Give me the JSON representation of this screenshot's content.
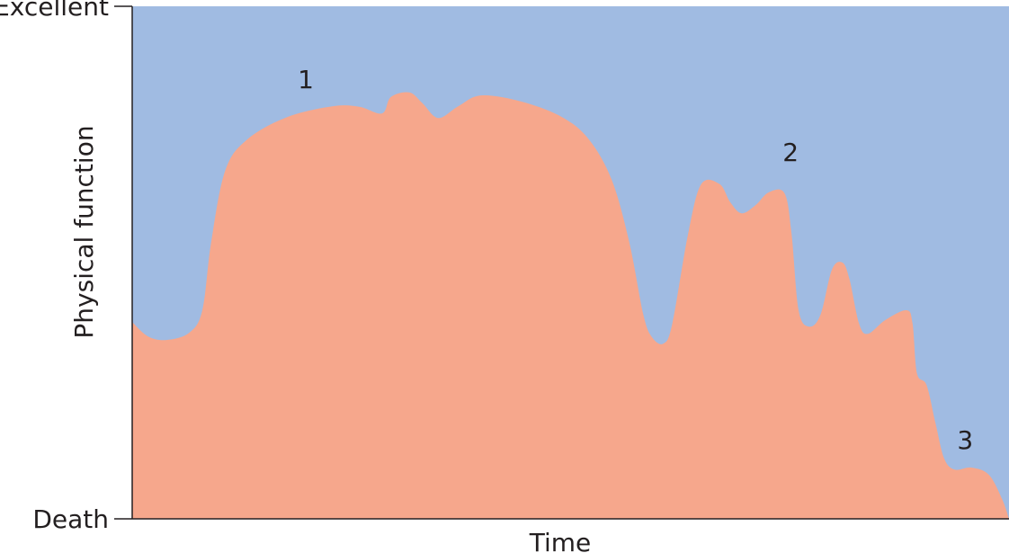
{
  "chart_data": {
    "type": "area",
    "title": "",
    "xlabel": "Time",
    "ylabel": "Physical function",
    "y_tick_labels": [
      {
        "value": 100,
        "label": "Excellent"
      },
      {
        "value": 0,
        "label": "Death"
      }
    ],
    "xlim": [
      0,
      100
    ],
    "ylim": [
      0,
      100
    ],
    "grid": false,
    "colors": {
      "area": "#F6A78C",
      "background": "#A0BBE2",
      "axis": "#231F20"
    },
    "points": [
      [
        0,
        38.4
      ],
      [
        1.8,
        35.6
      ],
      [
        3.9,
        34.9
      ],
      [
        6.5,
        36.3
      ],
      [
        8.0,
        40.7
      ],
      [
        9.0,
        53.9
      ],
      [
        10.6,
        67.9
      ],
      [
        13.1,
        74.0
      ],
      [
        17.7,
        78.4
      ],
      [
        22.9,
        80.5
      ],
      [
        25.9,
        80.4
      ],
      [
        28.5,
        79.1
      ],
      [
        29.5,
        82.3
      ],
      [
        31.6,
        83.2
      ],
      [
        33.1,
        81.1
      ],
      [
        34.9,
        78.2
      ],
      [
        37.2,
        80.5
      ],
      [
        39.8,
        82.6
      ],
      [
        44.4,
        81.4
      ],
      [
        49.0,
        78.4
      ],
      [
        52.1,
        74.0
      ],
      [
        54.7,
        66.1
      ],
      [
        56.7,
        53.9
      ],
      [
        58.3,
        39.8
      ],
      [
        59.3,
        35.4
      ],
      [
        60.6,
        34.2
      ],
      [
        61.6,
        38.1
      ],
      [
        63.4,
        55.6
      ],
      [
        64.9,
        65.3
      ],
      [
        67.0,
        65.3
      ],
      [
        68.2,
        61.8
      ],
      [
        69.5,
        59.6
      ],
      [
        71.1,
        61.2
      ],
      [
        72.6,
        63.7
      ],
      [
        74.4,
        63.5
      ],
      [
        75.2,
        55.6
      ],
      [
        76.0,
        40.7
      ],
      [
        77.2,
        37.5
      ],
      [
        78.5,
        39.8
      ],
      [
        79.8,
        48.6
      ],
      [
        81.0,
        50.0
      ],
      [
        81.8,
        46.8
      ],
      [
        82.9,
        38.1
      ],
      [
        83.9,
        36.1
      ],
      [
        85.9,
        38.8
      ],
      [
        88.3,
        40.7
      ],
      [
        89.0,
        38.1
      ],
      [
        89.5,
        28.4
      ],
      [
        90.6,
        26.1
      ],
      [
        91.6,
        18.8
      ],
      [
        92.6,
        11.8
      ],
      [
        93.8,
        9.6
      ],
      [
        95.7,
        10.0
      ],
      [
        97.7,
        8.6
      ],
      [
        99.2,
        3.9
      ],
      [
        100,
        0
      ]
    ],
    "annotations": [
      {
        "label": "1",
        "x": 19.8,
        "y": 85.8
      },
      {
        "label": "2",
        "x": 75.1,
        "y": 71.6
      },
      {
        "label": "3",
        "x": 95.0,
        "y": 15.4
      }
    ]
  }
}
